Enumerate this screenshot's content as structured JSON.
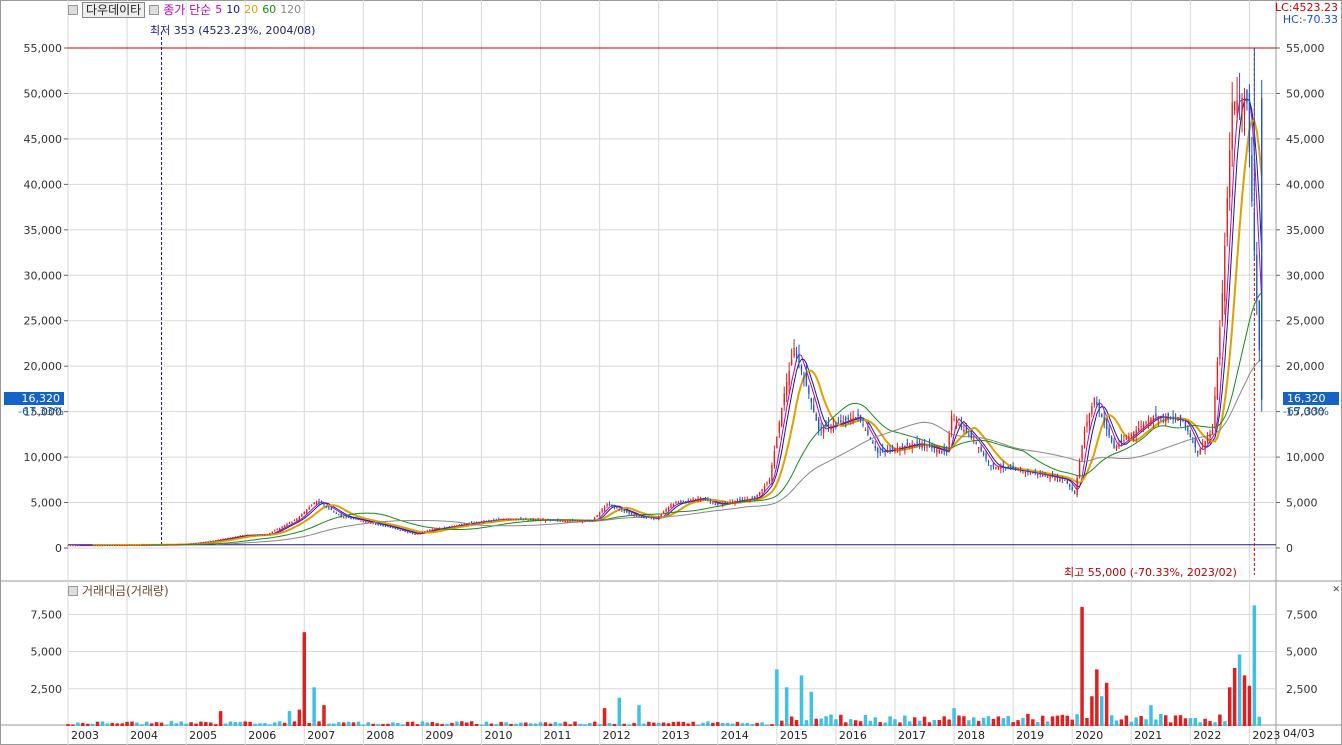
{
  "legend": {
    "source_button": "다우데이타",
    "ma_label": "종가 단순",
    "ma_periods": [
      {
        "period": "5",
        "color": "#c000c0"
      },
      {
        "period": "10",
        "color": "#1a1a8c"
      },
      {
        "period": "20",
        "color": "#e0a000"
      },
      {
        "period": "60",
        "color": "#1a8a1a"
      },
      {
        "period": "120",
        "color": "#888888"
      }
    ]
  },
  "indicators": {
    "lc": "LC:4523.23",
    "hc": "HC:-70.33"
  },
  "annotations": {
    "low": "최저 353 (4523.23%, 2004/08)",
    "high": "최고 55,000 (-70.33%, 2023/02)"
  },
  "current": {
    "price": "16,320",
    "change_pct": "-67.33%"
  },
  "volume_panel": {
    "title": "거래대금(거래량)"
  },
  "date_end_label": "04/03",
  "colors": {
    "up": "#e02020",
    "down": "#1f56c4",
    "vol_up": "#e02020",
    "vol_down": "#3fc0e8",
    "grid": "#d8d8d8",
    "high_line": "#d00000",
    "zero_line": "#1a1a8c"
  },
  "chart_data": [
    {
      "type": "candlestick",
      "title": "",
      "ylim": [
        0,
        55000
      ],
      "y_ticks": [
        "0",
        "5,000",
        "10,000",
        "15,000",
        "20,000",
        "25,000",
        "30,000",
        "35,000",
        "40,000",
        "45,000",
        "50,000",
        "55,000"
      ],
      "x_tick_labels": [
        "2003",
        "2004",
        "2005",
        "2006",
        "2007",
        "2008",
        "2009",
        "2010",
        "2011",
        "2012",
        "2013",
        "2014",
        "2015",
        "2016",
        "2017",
        "2018",
        "2019",
        "2020",
        "2021",
        "2022",
        "2023"
      ],
      "close_anchors": [
        [
          "2003-01",
          300
        ],
        [
          "2004-08",
          353
        ],
        [
          "2005-01",
          420
        ],
        [
          "2005-06",
          700
        ],
        [
          "2006-01",
          1400
        ],
        [
          "2006-06",
          1500
        ],
        [
          "2006-12",
          3200
        ],
        [
          "2007-04",
          5200
        ],
        [
          "2007-09",
          3500
        ],
        [
          "2008-06",
          2400
        ],
        [
          "2008-12",
          1500
        ],
        [
          "2009-03",
          2000
        ],
        [
          "2009-12",
          2800
        ],
        [
          "2010-06",
          3200
        ],
        [
          "2011-06",
          3000
        ],
        [
          "2011-12",
          3000
        ],
        [
          "2012-03",
          4800
        ],
        [
          "2012-09",
          3500
        ],
        [
          "2013-01",
          3200
        ],
        [
          "2013-04",
          4800
        ],
        [
          "2013-10",
          5500
        ],
        [
          "2014-01",
          4800
        ],
        [
          "2014-09",
          5500
        ],
        [
          "2014-12",
          7500
        ],
        [
          "2015-03",
          17000
        ],
        [
          "2015-05",
          22000
        ],
        [
          "2015-08",
          17000
        ],
        [
          "2015-10",
          13000
        ],
        [
          "2016-06",
          14500
        ],
        [
          "2016-10",
          10500
        ],
        [
          "2017-06",
          11500
        ],
        [
          "2017-12",
          10500
        ],
        [
          "2018-01",
          14500
        ],
        [
          "2018-06",
          11500
        ],
        [
          "2018-09",
          9000
        ],
        [
          "2019-06",
          8200
        ],
        [
          "2019-12",
          7500
        ],
        [
          "2020-02",
          6000
        ],
        [
          "2020-04",
          13000
        ],
        [
          "2020-06",
          16500
        ],
        [
          "2020-10",
          11000
        ],
        [
          "2021-06",
          14500
        ],
        [
          "2021-12",
          14000
        ],
        [
          "2022-03",
          10500
        ],
        [
          "2022-06",
          13000
        ],
        [
          "2022-08",
          28000
        ],
        [
          "2022-10",
          49000
        ],
        [
          "2022-12",
          49500
        ],
        [
          "2023-01",
          49000
        ],
        [
          "2023-04",
          16320
        ]
      ],
      "high": {
        "value": 55000,
        "date": "2023/02"
      },
      "low": {
        "value": 353,
        "date": "2004/08"
      },
      "last_close": 16320
    },
    {
      "type": "bar",
      "title": "거래대금(거래량)",
      "ylim": [
        0,
        9000
      ],
      "y_ticks": [
        "2,500",
        "5,000",
        "7,500"
      ],
      "spikes": [
        [
          "2005-08",
          1000
        ],
        [
          "2006-10",
          1000
        ],
        [
          "2006-12",
          1100
        ],
        [
          "2007-01",
          6300
        ],
        [
          "2007-03",
          2600
        ],
        [
          "2007-05",
          1400
        ],
        [
          "2012-02",
          1200
        ],
        [
          "2012-05",
          1900
        ],
        [
          "2012-09",
          1400
        ],
        [
          "2015-01",
          3800
        ],
        [
          "2015-03",
          2600
        ],
        [
          "2015-06",
          3400
        ],
        [
          "2015-08",
          2300
        ],
        [
          "2018-01",
          1200
        ],
        [
          "2020-03",
          8000
        ],
        [
          "2020-05",
          2000
        ],
        [
          "2020-06",
          3800
        ],
        [
          "2020-07",
          2000
        ],
        [
          "2020-08",
          2900
        ],
        [
          "2021-05",
          1400
        ],
        [
          "2022-09",
          2600
        ],
        [
          "2022-10",
          3900
        ],
        [
          "2022-11",
          4800
        ],
        [
          "2022-12",
          3400
        ],
        [
          "2023-01",
          2700
        ],
        [
          "2023-02",
          8100
        ]
      ],
      "baseline": 150
    }
  ]
}
